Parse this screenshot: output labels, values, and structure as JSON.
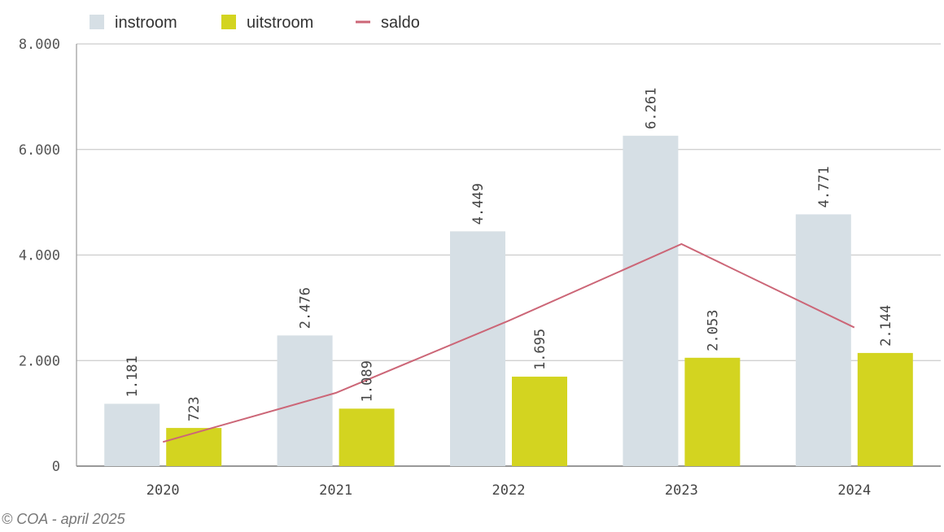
{
  "chart_data": {
    "type": "bar",
    "categories": [
      "2020",
      "2021",
      "2022",
      "2023",
      "2024"
    ],
    "series": [
      {
        "name": "instroom",
        "type": "bar",
        "color": "#d6dfe5",
        "values": [
          1181,
          2476,
          4449,
          6261,
          4771
        ],
        "labels": [
          "1.181",
          "2.476",
          "4.449",
          "6.261",
          "4.771"
        ]
      },
      {
        "name": "uitstroom",
        "type": "bar",
        "color": "#d3d420",
        "values": [
          723,
          1089,
          1695,
          2053,
          2144
        ],
        "labels": [
          "723",
          "1.089",
          "1.695",
          "2.053",
          "2.144"
        ]
      },
      {
        "name": "saldo",
        "type": "line",
        "color": "#cc6677",
        "values": [
          458,
          1387,
          2754,
          4208,
          2627
        ]
      }
    ],
    "ylim": [
      0,
      8000
    ],
    "yticks": [
      0,
      2000,
      4000,
      6000,
      8000
    ],
    "ytick_labels": [
      "0",
      "2.000",
      "4.000",
      "6.000",
      "8.000"
    ],
    "grid": true,
    "legend_position": "top-left"
  },
  "footer": {
    "credit": "© COA - april 2025"
  }
}
